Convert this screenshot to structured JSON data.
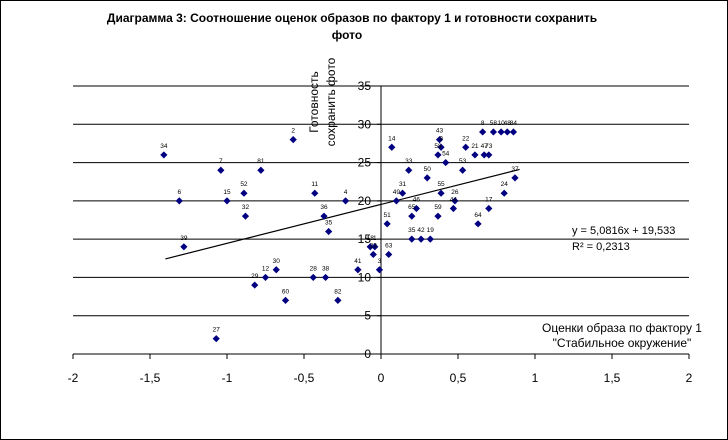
{
  "chart_data": {
    "type": "scatter",
    "title_line1": "Диаграмма 3: Соотношение оценок образов по фактору 1 и  готовности сохранить",
    "title_line2": "фото",
    "xlabel_line1": "Оценки образа по фактору 1",
    "xlabel_line2": "\"Стабильное окружение\"",
    "ylabel_line1": "Готовность",
    "ylabel_line2": "сохранить фото",
    "xlim": [
      -2,
      2
    ],
    "ylim": [
      0,
      35
    ],
    "xticks": [
      "-2",
      "-1,5",
      "-1",
      "-0,5",
      "0",
      "0,5",
      "1",
      "1,5",
      "2"
    ],
    "xtick_values": [
      -2,
      -1.5,
      -1,
      -0.5,
      0,
      0.5,
      1,
      1.5,
      2
    ],
    "yticks": [
      "0",
      "5",
      "10",
      "15",
      "20",
      "25",
      "30",
      "35"
    ],
    "ytick_values": [
      0,
      5,
      10,
      15,
      20,
      25,
      30,
      35
    ],
    "grid": "horizontal",
    "marker_color": "#000080",
    "trendline": {
      "slope": 5.0816,
      "intercept": 19.533,
      "x_range": [
        -1.4,
        0.9
      ],
      "equation": "y = 5,0816x + 19,533",
      "r2": "R² = 0,2313"
    },
    "points": [
      {
        "label": "34",
        "x": -1.41,
        "y": 26
      },
      {
        "label": "7",
        "x": -1.04,
        "y": 24
      },
      {
        "label": "81",
        "x": -0.78,
        "y": 24
      },
      {
        "label": "2",
        "x": -0.57,
        "y": 28
      },
      {
        "label": "6",
        "x": -1.31,
        "y": 20
      },
      {
        "label": "52",
        "x": -0.89,
        "y": 21
      },
      {
        "label": "15",
        "x": -1.0,
        "y": 20
      },
      {
        "label": "32",
        "x": -0.88,
        "y": 18
      },
      {
        "label": "39",
        "x": -1.28,
        "y": 14
      },
      {
        "label": "11",
        "x": -0.43,
        "y": 21
      },
      {
        "label": "4",
        "x": -0.23,
        "y": 20
      },
      {
        "label": "36",
        "x": -0.37,
        "y": 18
      },
      {
        "label": "35",
        "x": -0.34,
        "y": 16
      },
      {
        "label": "12",
        "x": -0.75,
        "y": 10
      },
      {
        "label": "30",
        "x": -0.68,
        "y": 11
      },
      {
        "label": "29",
        "x": -0.82,
        "y": 9
      },
      {
        "label": "60",
        "x": -0.62,
        "y": 7
      },
      {
        "label": "28",
        "x": -0.44,
        "y": 10
      },
      {
        "label": "38",
        "x": -0.36,
        "y": 10
      },
      {
        "label": "82",
        "x": -0.28,
        "y": 7
      },
      {
        "label": "41",
        "x": -0.15,
        "y": 11
      },
      {
        "label": "27",
        "x": -1.07,
        "y": 2
      },
      {
        "label": "18",
        "x": -0.07,
        "y": 14
      },
      {
        "label": "1",
        "x": -0.04,
        "y": 14
      },
      {
        "label": "23",
        "x": -0.05,
        "y": 13
      },
      {
        "label": "3",
        "x": -0.01,
        "y": 11
      },
      {
        "label": "63",
        "x": 0.05,
        "y": 13
      },
      {
        "label": "51",
        "x": 0.04,
        "y": 17
      },
      {
        "label": "14",
        "x": 0.07,
        "y": 27
      },
      {
        "label": "33",
        "x": 0.18,
        "y": 24
      },
      {
        "label": "49",
        "x": 0.1,
        "y": 20
      },
      {
        "label": "31",
        "x": 0.14,
        "y": 21
      },
      {
        "label": "50",
        "x": 0.3,
        "y": 23
      },
      {
        "label": "43",
        "x": 0.38,
        "y": 28
      },
      {
        "label": "9",
        "x": 0.39,
        "y": 27
      },
      {
        "label": "58",
        "x": 0.37,
        "y": 26
      },
      {
        "label": "54",
        "x": 0.42,
        "y": 25
      },
      {
        "label": "55",
        "x": 0.39,
        "y": 21
      },
      {
        "label": "46",
        "x": 0.23,
        "y": 19
      },
      {
        "label": "65",
        "x": 0.2,
        "y": 18
      },
      {
        "label": "35",
        "x": 0.2,
        "y": 15
      },
      {
        "label": "42",
        "x": 0.26,
        "y": 15
      },
      {
        "label": "19",
        "x": 0.32,
        "y": 15
      },
      {
        "label": "59",
        "x": 0.37,
        "y": 18
      },
      {
        "label": "26",
        "x": 0.48,
        "y": 20
      },
      {
        "label": "44",
        "x": 0.47,
        "y": 19
      },
      {
        "label": "22",
        "x": 0.55,
        "y": 27
      },
      {
        "label": "53",
        "x": 0.53,
        "y": 24
      },
      {
        "label": "21",
        "x": 0.61,
        "y": 26
      },
      {
        "label": "47",
        "x": 0.67,
        "y": 26
      },
      {
        "label": "73",
        "x": 0.7,
        "y": 26
      },
      {
        "label": "8",
        "x": 0.66,
        "y": 29
      },
      {
        "label": "58",
        "x": 0.73,
        "y": 29
      },
      {
        "label": "10",
        "x": 0.78,
        "y": 29
      },
      {
        "label": "48",
        "x": 0.82,
        "y": 29
      },
      {
        "label": "84",
        "x": 0.86,
        "y": 29
      },
      {
        "label": "37",
        "x": 0.87,
        "y": 23
      },
      {
        "label": "24",
        "x": 0.8,
        "y": 21
      },
      {
        "label": "17",
        "x": 0.7,
        "y": 19
      },
      {
        "label": "64",
        "x": 0.63,
        "y": 17
      }
    ]
  }
}
